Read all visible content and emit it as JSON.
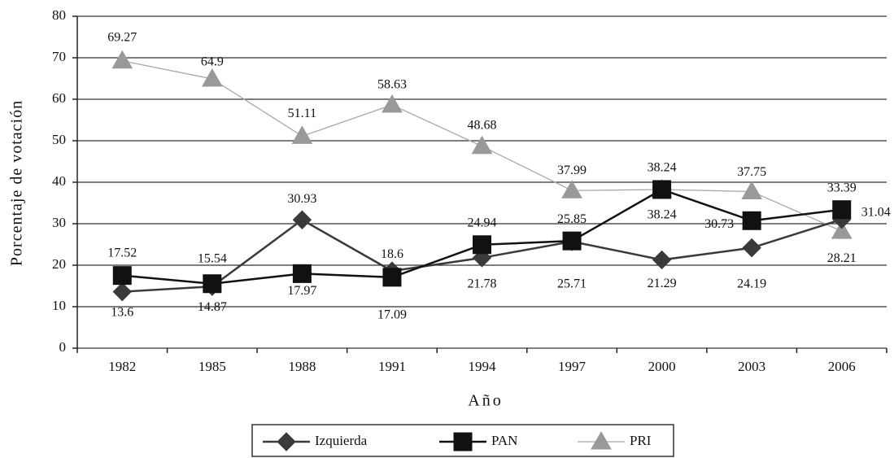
{
  "chart_data": {
    "type": "line",
    "xlabel": "Año",
    "ylabel": "Porcentaje de votación",
    "categories": [
      "1982",
      "1985",
      "1988",
      "1991",
      "1994",
      "1997",
      "2000",
      "2003",
      "2006"
    ],
    "series": [
      {
        "name": "Izquierda",
        "color": "#3a3a3a",
        "marker": "diamond",
        "values": [
          13.6,
          14.87,
          30.93,
          18.6,
          21.78,
          25.71,
          21.29,
          24.19,
          31.04
        ]
      },
      {
        "name": "PAN",
        "color": "#111111",
        "marker": "square",
        "values": [
          17.52,
          15.54,
          17.97,
          17.09,
          24.94,
          25.85,
          38.24,
          30.73,
          33.39
        ]
      },
      {
        "name": "PRI",
        "color": "#a8a8a8",
        "marker": "triangle",
        "values": [
          69.27,
          64.9,
          51.11,
          58.63,
          48.68,
          37.99,
          38.24,
          37.75,
          28.21
        ]
      }
    ],
    "ylim": [
      0,
      80
    ],
    "yticks": [
      0,
      10,
      20,
      30,
      40,
      50,
      60,
      70,
      80
    ],
    "grid": true,
    "legend": "bottom"
  }
}
